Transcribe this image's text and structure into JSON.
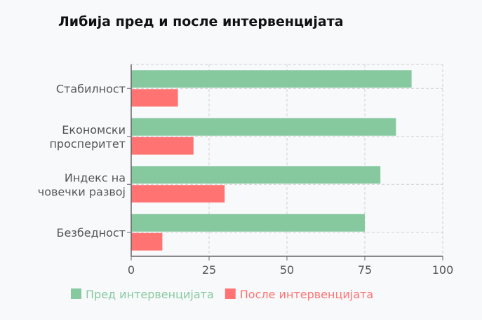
{
  "chart_data": {
    "type": "bar",
    "orientation": "horizontal",
    "title": "Либија пред и после интервенцијата",
    "categories": [
      [
        "Стабилност"
      ],
      [
        "Економски",
        "просперитет"
      ],
      [
        "Индекс на",
        "човечки развој"
      ],
      [
        "Безбедност"
      ]
    ],
    "series": [
      {
        "name": "Пред интервенцијата",
        "values": [
          90,
          85,
          80,
          75
        ],
        "color": "#86c99f"
      },
      {
        "name": "После интервенцијата",
        "values": [
          15,
          20,
          30,
          10
        ],
        "color": "#ff7373"
      }
    ],
    "xlim": [
      0,
      100
    ],
    "xticks": [
      0,
      25,
      50,
      75,
      100
    ],
    "grid": true,
    "legend_position": "bottom-left"
  }
}
